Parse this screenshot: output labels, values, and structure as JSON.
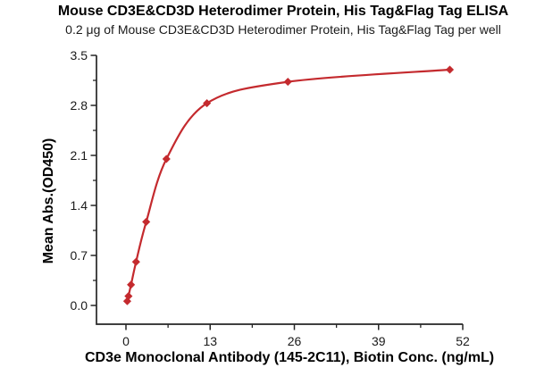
{
  "chart_data": {
    "type": "scatter",
    "title": "Mouse CD3E&CD3D Heterodimer Protein, His Tag&Flag Tag ELISA",
    "subtitle": "0.2 μg of Mouse CD3E&CD3D Heterodimer Protein, His Tag&Flag Tag per well",
    "xlabel": "CD3e Monoclonal Antibody (145-2C11), Biotin Conc. (ng/mL)",
    "ylabel": "Mean Abs.(OD450)",
    "x": [
      0.195,
      0.39,
      0.78,
      1.56,
      3.125,
      6.25,
      12.5,
      25,
      50
    ],
    "y": [
      0.06,
      0.13,
      0.29,
      0.61,
      1.17,
      2.05,
      2.83,
      3.13,
      3.3
    ],
    "series_name": "Mean Abs.(OD450) vs antibody concentration, 4PL fit curve",
    "marker": "diamond",
    "line": "smooth fit through points",
    "xlim": [
      0,
      52
    ],
    "ylim": [
      0,
      3.5
    ],
    "x_ticks": [
      0,
      13,
      26,
      39,
      52
    ],
    "x_tick_labels": [
      "0",
      "13",
      "26",
      "39",
      "52"
    ],
    "x_minor_ticks": [
      6.5,
      19.5,
      32.5,
      45.5
    ],
    "y_ticks": [
      0.0,
      0.7,
      1.4,
      2.1,
      2.8,
      3.5
    ],
    "y_tick_labels": [
      "0.0",
      "0.7",
      "1.4",
      "2.1",
      "2.8",
      "3.5"
    ],
    "y_minor_ticks": [
      0.35,
      1.05,
      1.75,
      2.45,
      3.15
    ],
    "grid": false,
    "legend": "none",
    "colors": {
      "series": "#c42a2e",
      "axis": "#262626",
      "text": "#1a1a1a",
      "background": "#ffffff"
    }
  }
}
